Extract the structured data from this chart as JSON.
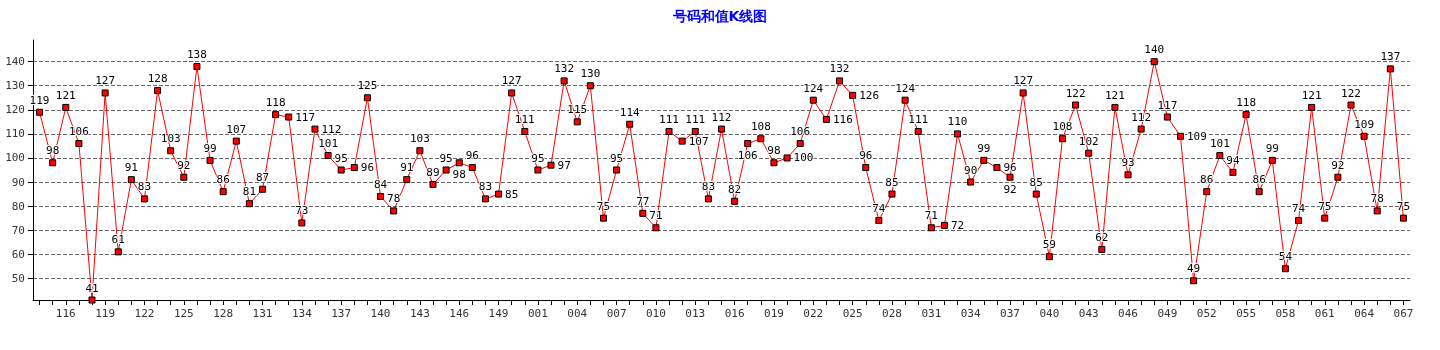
{
  "chart_data": {
    "type": "line",
    "title": "号码和值K线图",
    "categories": [
      null,
      null,
      "116",
      null,
      null,
      "119",
      null,
      null,
      "122",
      null,
      null,
      "125",
      null,
      null,
      "128",
      null,
      null,
      "131",
      null,
      null,
      "134",
      null,
      null,
      "137",
      null,
      null,
      "140",
      null,
      null,
      "143",
      null,
      null,
      "146",
      null,
      null,
      "149",
      null,
      null,
      "001",
      null,
      null,
      "004",
      null,
      null,
      "007",
      null,
      null,
      "010",
      null,
      null,
      "013",
      null,
      null,
      "016",
      null,
      null,
      "019",
      null,
      null,
      "022",
      null,
      null,
      "025",
      null,
      null,
      "028",
      null,
      null,
      "031",
      null,
      null,
      "034",
      null,
      null,
      "037",
      null,
      null,
      "040",
      null,
      null,
      "043",
      null,
      null,
      "046",
      null,
      null,
      "049",
      null,
      null,
      "052",
      null,
      null,
      "055",
      null,
      null,
      "058",
      null,
      null,
      "061",
      null,
      null,
      "064",
      null,
      null,
      "067"
    ],
    "series": [
      {
        "color": "#ff0000",
        "values": [
          119,
          98,
          121,
          106,
          41,
          127,
          61,
          91,
          83,
          128,
          103,
          92,
          138,
          99,
          86,
          107,
          81,
          87,
          118,
          117,
          73,
          112,
          101,
          95,
          96,
          125,
          84,
          78,
          91,
          103,
          89,
          95,
          98,
          96,
          83,
          85,
          127,
          111,
          95,
          97,
          132,
          115,
          130,
          75,
          95,
          114,
          77,
          71,
          111,
          107,
          111,
          83,
          112,
          82,
          106,
          108,
          98,
          100,
          106,
          124,
          116,
          132,
          126,
          96,
          74,
          85,
          124,
          111,
          71,
          72,
          110,
          90,
          99,
          96,
          92,
          127,
          85,
          59,
          108,
          122,
          102,
          62,
          121,
          93,
          112,
          140,
          117,
          109,
          49,
          86,
          101,
          94,
          118,
          86,
          99,
          54,
          74,
          121,
          75,
          92,
          122,
          109,
          78,
          137,
          75
        ]
      }
    ],
    "ylim": [
      41,
      149
    ],
    "yticks": [
      50,
      60,
      70,
      80,
      90,
      100,
      110,
      120,
      130,
      140
    ],
    "grid": "y",
    "marker": "square",
    "line_style": "solid",
    "data_labels": true
  }
}
